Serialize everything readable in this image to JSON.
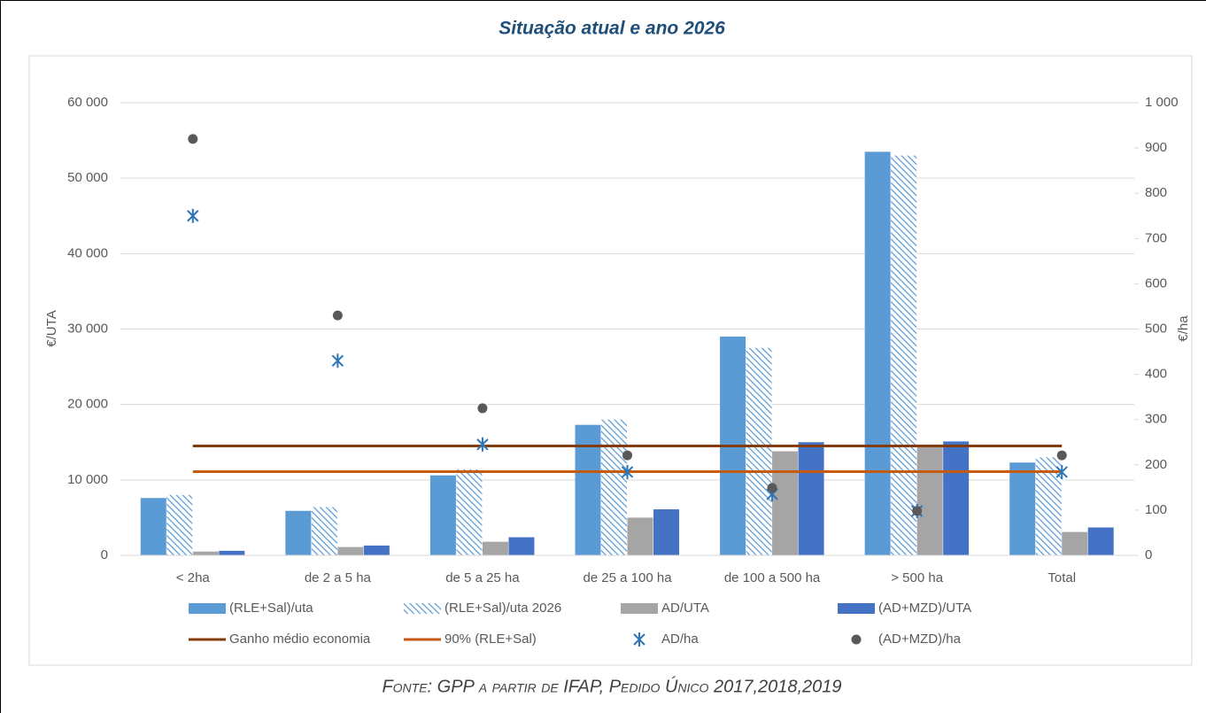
{
  "chart_data": {
    "type": "combo",
    "title": "Situação atual e ano 2026",
    "source": "Fonte: GPP a partir de IFAP, Pedido Único 2017,2018,2019",
    "y_label": "€/UTA",
    "y2_label": "€/ha",
    "categories": [
      "< 2ha",
      "de 2 a 5 ha",
      "de 5 a 25 ha",
      "de 25 a 100 ha",
      "de 100 a 500 ha",
      "> 500 ha",
      "Total"
    ],
    "ylim": [
      0,
      60000
    ],
    "yticks": [
      0,
      {
        "value": 10000,
        "label": "10 000"
      },
      {
        "value": 20000,
        "label": "20 000"
      },
      {
        "value": 30000,
        "label": "30 000"
      },
      {
        "value": 40000,
        "label": "40 000"
      },
      {
        "value": 50000,
        "label": "50 000"
      },
      {
        "value": 60000,
        "label": "60 000"
      }
    ],
    "y2lim": [
      0,
      1000
    ],
    "y2ticks": [
      0,
      100,
      200,
      300,
      400,
      500,
      600,
      700,
      800,
      900,
      {
        "value": 1000,
        "label": "1 000"
      }
    ],
    "grid": true,
    "legend": "bottom",
    "series": [
      {
        "name": "(RLE+Sal)/uta",
        "type": "bar",
        "color": "#5b9bd5",
        "values": [
          7600,
          5900,
          10600,
          17300,
          29000,
          53500,
          12300
        ]
      },
      {
        "name": "(RLE+Sal)/uta 2026",
        "type": "bar",
        "color": "#5b9bd5",
        "hatch": true,
        "values": [
          8000,
          6400,
          11400,
          18000,
          27500,
          53000,
          13000
        ]
      },
      {
        "name": "AD/UTA",
        "type": "bar",
        "color": "#a5a5a5",
        "values": [
          500,
          1100,
          1800,
          5000,
          13800,
          14600,
          3100
        ]
      },
      {
        "name": "(AD+MZD)/UTA",
        "type": "bar",
        "color": "#4472c4",
        "values": [
          600,
          1300,
          2400,
          6100,
          15000,
          15100,
          3700
        ]
      },
      {
        "name": "Ganho médio economia",
        "type": "line",
        "color": "#843c0c",
        "values": [
          14500,
          14500,
          14500,
          14500,
          14500,
          14500,
          14500
        ]
      },
      {
        "name": "90% (RLE+Sal)",
        "type": "line",
        "color": "#c55a11",
        "values": [
          11100,
          11100,
          11100,
          11100,
          11100,
          11100,
          11100
        ]
      },
      {
        "name": "AD/ha",
        "type": "scatter",
        "marker": "asterisk",
        "axis": "y2",
        "color": "#2e75b6",
        "values": [
          750,
          430,
          245,
          184,
          135,
          98,
          184
        ]
      },
      {
        "name": "(AD+MZD)/ha",
        "type": "scatter",
        "marker": "circle",
        "axis": "y2",
        "color": "#595959",
        "values": [
          920,
          530,
          325,
          221,
          149,
          98,
          221
        ]
      }
    ]
  }
}
